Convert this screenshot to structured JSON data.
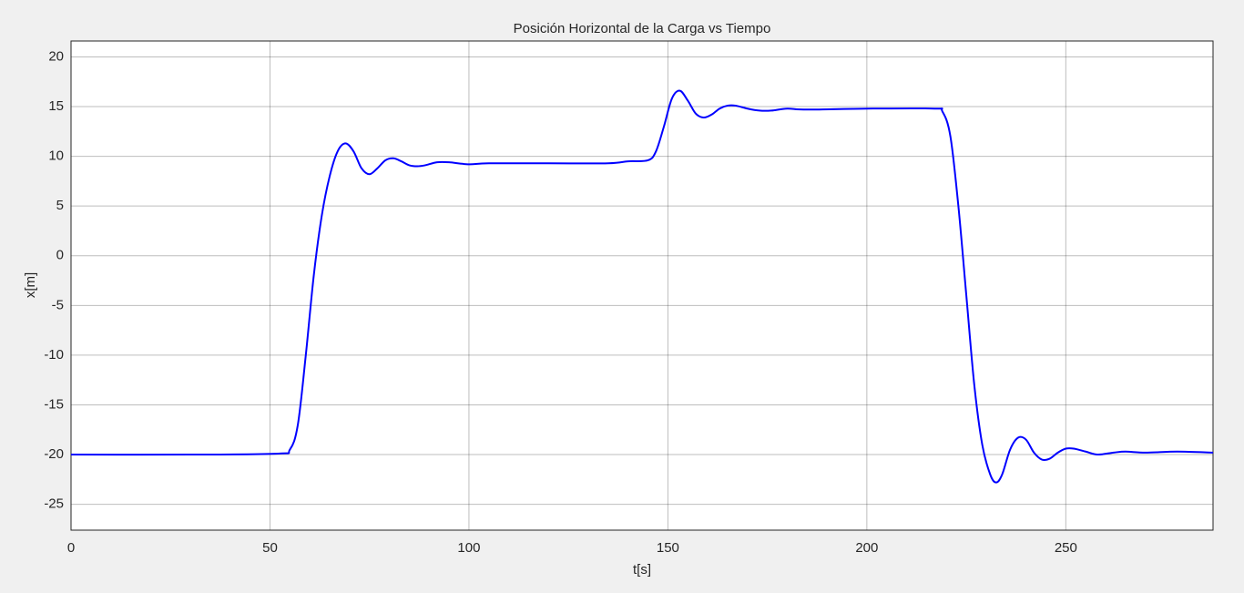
{
  "chart_data": {
    "type": "line",
    "title": "Posición Horizontal de la Carga vs Tiempo",
    "x_label": "t[s]",
    "y_label": "x[m]",
    "xlim": [
      0,
      287
    ],
    "ylim": [
      -27.6,
      21.6
    ],
    "xticks": [
      0,
      50,
      100,
      150,
      200,
      250
    ],
    "yticks": [
      -25,
      -20,
      -15,
      -10,
      -5,
      0,
      5,
      10,
      15,
      20
    ],
    "grid": true,
    "x": [
      0,
      30,
      52,
      55,
      57,
      59,
      61,
      63,
      65,
      67,
      69,
      71,
      73,
      75,
      77,
      79,
      81,
      83,
      85,
      87,
      89,
      92,
      95,
      100,
      105,
      120,
      135,
      140,
      145,
      147,
      149,
      151,
      153,
      155,
      157,
      159,
      161,
      163,
      165,
      167,
      170,
      173,
      176,
      180,
      185,
      200,
      217,
      219,
      221,
      223,
      225,
      227,
      229,
      231,
      232.5,
      234,
      236,
      238,
      240,
      242,
      244,
      246,
      248,
      250,
      252,
      255,
      258,
      262,
      265,
      270,
      278,
      287
    ],
    "series": [
      {
        "name": "x",
        "color": "#0000ff",
        "values": [
          -20,
          -20,
          -19.9,
          -19.5,
          -17,
          -10,
          -2,
          4,
          8,
          10.5,
          11.3,
          10.5,
          8.8,
          8.2,
          8.8,
          9.6,
          9.8,
          9.5,
          9.1,
          9.0,
          9.1,
          9.4,
          9.4,
          9.2,
          9.3,
          9.3,
          9.3,
          9.5,
          9.6,
          10.5,
          13,
          15.8,
          16.6,
          15.6,
          14.3,
          13.9,
          14.2,
          14.8,
          15.1,
          15.1,
          14.8,
          14.6,
          14.6,
          14.8,
          14.7,
          14.8,
          14.8,
          14.5,
          12,
          5,
          -4,
          -13,
          -19,
          -22,
          -22.8,
          -22,
          -19.5,
          -18.3,
          -18.5,
          -19.8,
          -20.5,
          -20.4,
          -19.8,
          -19.4,
          -19.4,
          -19.7,
          -20,
          -19.8,
          -19.7,
          -19.8,
          -19.7,
          -19.8
        ]
      }
    ]
  }
}
